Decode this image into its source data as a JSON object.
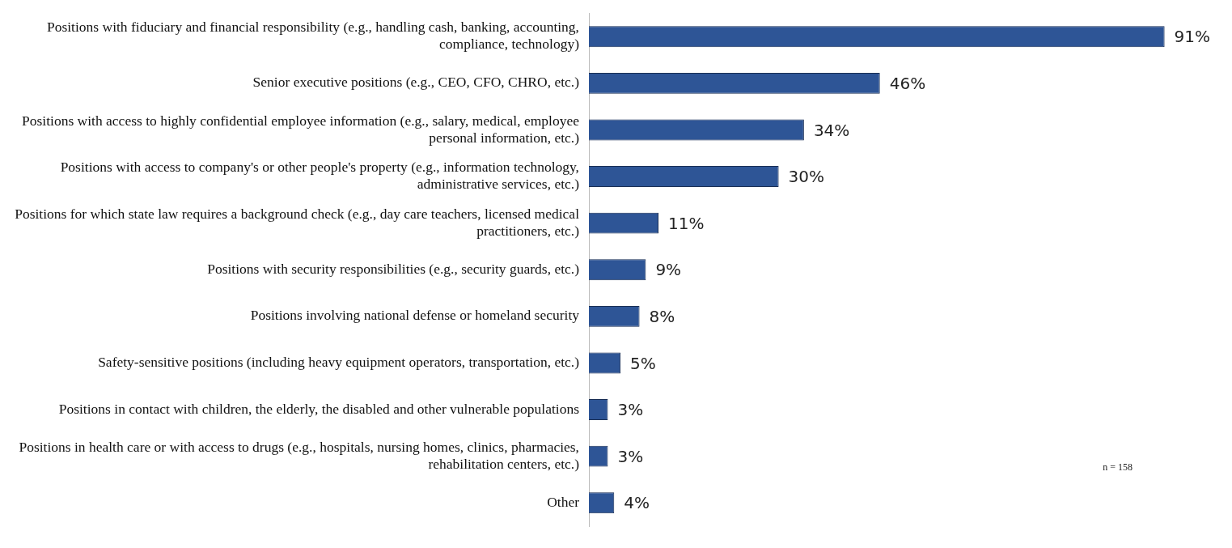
{
  "chart_data": {
    "type": "bar",
    "orientation": "horizontal",
    "categories": [
      "Positions with fiduciary and financial responsibility (e.g., handling cash, banking, accounting, compliance, technology)",
      "Senior executive positions (e.g., CEO, CFO, CHRO, etc.)",
      "Positions with access to highly confidential employee information (e.g., salary, medical, employee personal information, etc.)",
      "Positions with access to company's or other people's property (e.g., information technology, administrative services, etc.)",
      "Positions for which state law requires a background check (e.g., day care teachers, licensed medical practitioners, etc.)",
      "Positions with security responsibilities (e.g., security guards, etc.)",
      "Positions involving national defense or homeland security",
      "Safety-sensitive positions (including heavy equipment operators, transportation, etc.)",
      "Positions in contact with children, the elderly, the disabled and other vulnerable populations",
      "Positions in health care or with access to drugs (e.g., hospitals, nursing homes, clinics, pharmacies, rehabilitation centers, etc.)",
      "Other"
    ],
    "values": [
      91,
      46,
      34,
      30,
      11,
      9,
      8,
      5,
      3,
      3,
      4
    ],
    "value_labels": [
      "91%",
      "46%",
      "34%",
      "30%",
      "11%",
      "9%",
      "8%",
      "5%",
      "3%",
      "3%",
      "4%"
    ],
    "color": "#2e5596",
    "annotations": [
      "n = 158"
    ],
    "legend": false
  }
}
